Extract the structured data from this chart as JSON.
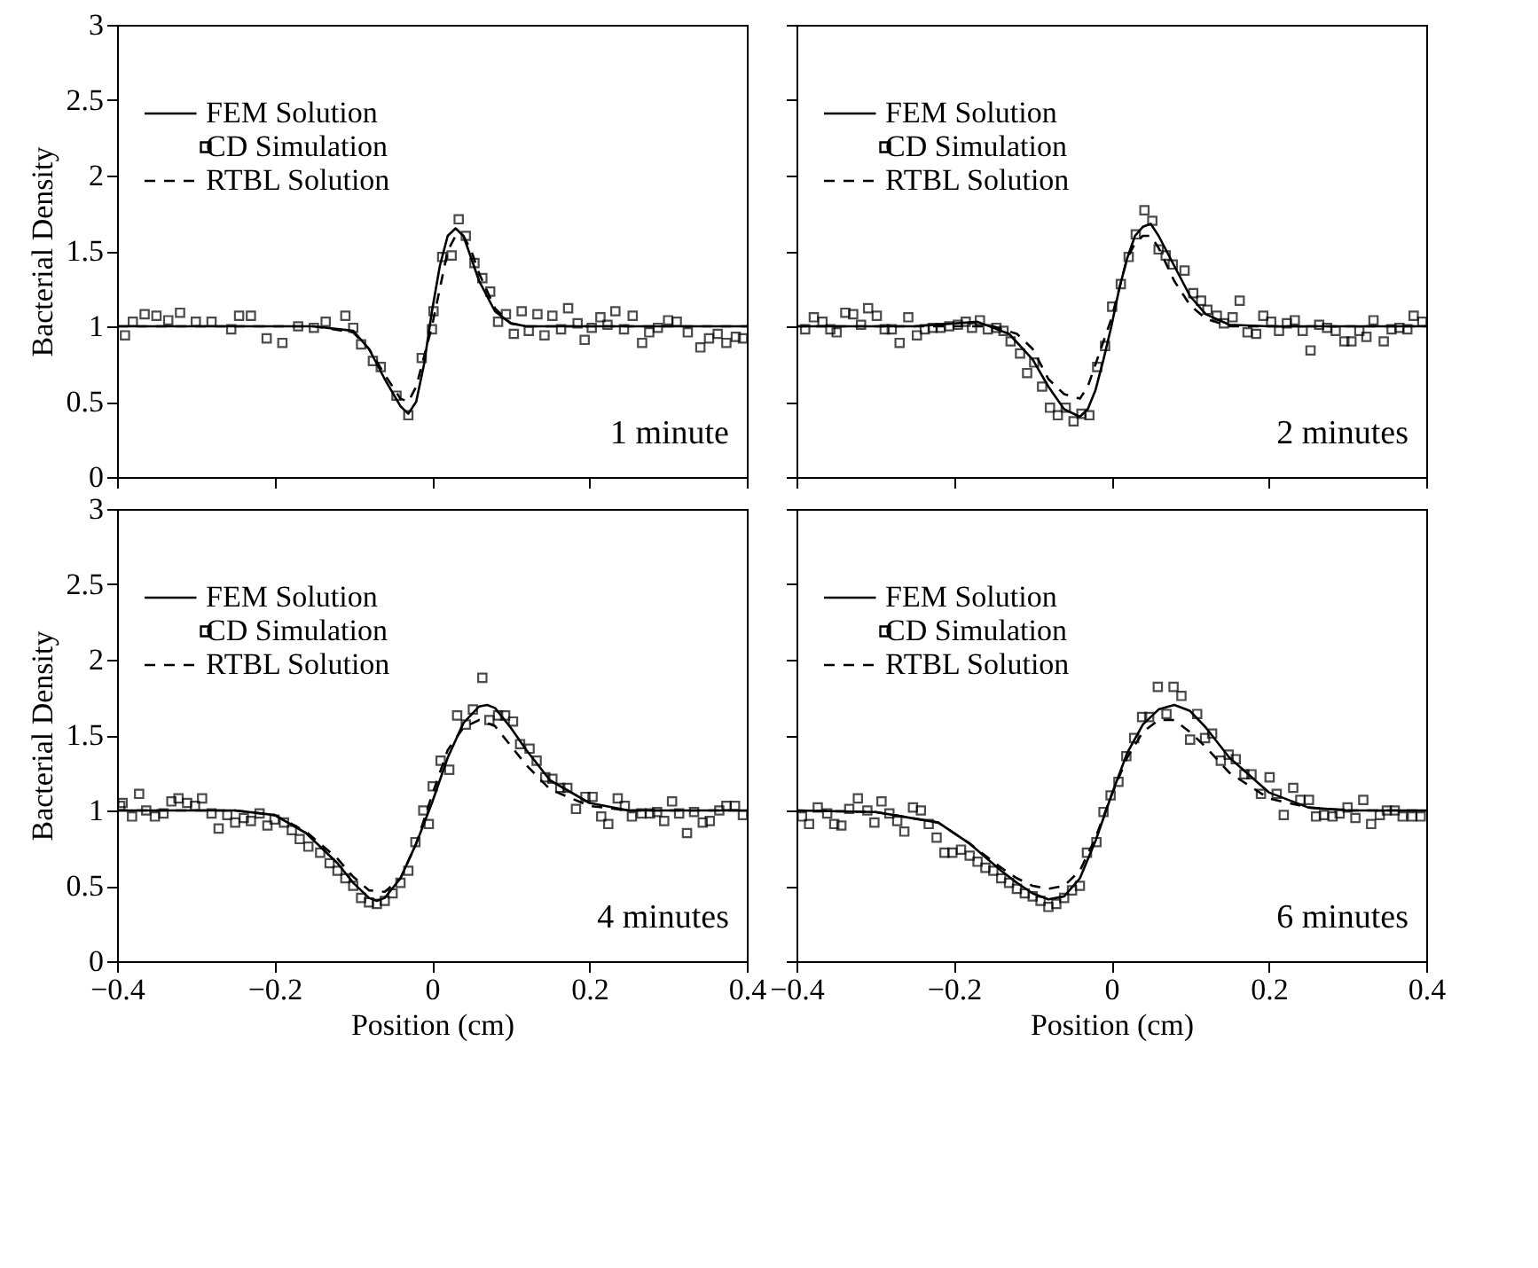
{
  "chart_data": [
    {
      "type": "line",
      "ylabel": "Bacterial Density",
      "xlim": [
        -0.4,
        0.4
      ],
      "xticks": [
        -0.4,
        -0.2,
        0,
        0.2,
        0.4
      ],
      "ylim": [
        0,
        3
      ],
      "yticks": [
        0,
        0.5,
        1,
        1.5,
        2,
        2.5,
        3
      ],
      "tick_labels": "y",
      "legend": "top left",
      "grid": false,
      "annotations": [
        "1 minute"
      ],
      "series": [
        {
          "name": "FEM Solution",
          "type": "line",
          "line_style": "solid",
          "color": "#000000",
          "x": [
            -0.4,
            -0.15,
            -0.1,
            -0.08,
            -0.06,
            -0.04,
            -0.03,
            -0.02,
            -0.01,
            0,
            0.01,
            0.02,
            0.03,
            0.04,
            0.05,
            0.06,
            0.08,
            0.1,
            0.12,
            0.4
          ],
          "values": [
            1,
            1,
            0.97,
            0.85,
            0.65,
            0.47,
            0.42,
            0.5,
            0.75,
            1.1,
            1.4,
            1.6,
            1.65,
            1.6,
            1.45,
            1.3,
            1.1,
            1.02,
            1,
            1
          ]
        },
        {
          "name": "CD Simulation",
          "type": "scatter",
          "marker": "square",
          "color": "#000000",
          "x": [
            -0.39,
            -0.38,
            -0.365,
            -0.35,
            -0.335,
            -0.32,
            -0.3,
            -0.28,
            -0.255,
            -0.245,
            -0.23,
            -0.21,
            -0.19,
            -0.17,
            -0.15,
            -0.135,
            -0.11,
            -0.1,
            -0.09,
            -0.075,
            -0.065,
            -0.045,
            -0.03,
            -0.013,
            0,
            0.002,
            0.013,
            0.025,
            0.034,
            0.043,
            0.054,
            0.064,
            0.074,
            0.084,
            0.094,
            0.104,
            0.114,
            0.123,
            0.134,
            0.143,
            0.153,
            0.164,
            0.173,
            0.185,
            0.194,
            0.203,
            0.214,
            0.223,
            0.233,
            0.244,
            0.255,
            0.267,
            0.276,
            0.287,
            0.3,
            0.311,
            0.325,
            0.341,
            0.352,
            0.363,
            0.374,
            0.386,
            0.395
          ],
          "values": [
            0.94,
            1.03,
            1.08,
            1.07,
            1.04,
            1.09,
            1.03,
            1.03,
            0.98,
            1.07,
            1.07,
            0.92,
            0.89,
            1,
            0.99,
            1.03,
            1.07,
            0.99,
            0.88,
            0.77,
            0.73,
            0.54,
            0.41,
            0.79,
            0.98,
            1.1,
            1.46,
            1.47,
            1.71,
            1.6,
            1.42,
            1.32,
            1.23,
            1.03,
            1.08,
            0.95,
            1.1,
            0.97,
            1.08,
            0.94,
            1.07,
            0.98,
            1.12,
            1.02,
            0.91,
            0.99,
            1.06,
            1.01,
            1.1,
            0.98,
            1.07,
            0.89,
            0.96,
            0.99,
            1.04,
            1.03,
            0.96,
            0.86,
            0.92,
            0.95,
            0.89,
            0.93,
            0.92
          ]
        },
        {
          "name": "RTBL Solution",
          "type": "line",
          "line_style": "dashed",
          "color": "#000000",
          "x": [
            -0.4,
            -0.15,
            -0.1,
            -0.08,
            -0.06,
            -0.04,
            -0.03,
            -0.02,
            0,
            0.02,
            0.03,
            0.04,
            0.05,
            0.06,
            0.08,
            0.1,
            0.12,
            0.4
          ],
          "values": [
            1,
            1,
            0.96,
            0.85,
            0.68,
            0.52,
            0.5,
            0.6,
            1.0,
            1.5,
            1.6,
            1.6,
            1.5,
            1.35,
            1.12,
            1.02,
            1,
            1
          ]
        }
      ]
    },
    {
      "type": "line",
      "xlim": [
        -0.4,
        0.4
      ],
      "xticks": [
        -0.4,
        -0.2,
        0,
        0.2,
        0.4
      ],
      "ylim": [
        0,
        3
      ],
      "yticks": [
        0,
        0.5,
        1,
        1.5,
        2,
        2.5,
        3
      ],
      "tick_labels": false,
      "legend": "top left",
      "grid": false,
      "annotations": [
        "2 minutes"
      ],
      "series": [
        {
          "name": "FEM Solution",
          "type": "line",
          "line_style": "solid",
          "color": "#000000",
          "x": [
            -0.4,
            -0.25,
            -0.17,
            -0.13,
            -0.1,
            -0.08,
            -0.06,
            -0.04,
            -0.03,
            -0.02,
            -0.01,
            0,
            0.01,
            0.02,
            0.03,
            0.04,
            0.05,
            0.06,
            0.08,
            0.1,
            0.12,
            0.15,
            0.2,
            0.4
          ],
          "values": [
            1,
            1,
            1.03,
            0.95,
            0.78,
            0.6,
            0.45,
            0.4,
            0.45,
            0.58,
            0.78,
            1.0,
            1.25,
            1.45,
            1.6,
            1.66,
            1.68,
            1.6,
            1.4,
            1.2,
            1.08,
            1.01,
            1,
            1
          ]
        },
        {
          "name": "CD Simulation",
          "type": "scatter",
          "marker": "square",
          "color": "#000000",
          "x": [
            -0.389,
            -0.378,
            -0.367,
            -0.357,
            -0.349,
            -0.338,
            -0.328,
            -0.318,
            -0.309,
            -0.298,
            -0.288,
            -0.279,
            -0.269,
            -0.258,
            -0.247,
            -0.237,
            -0.227,
            -0.217,
            -0.206,
            -0.195,
            -0.185,
            -0.177,
            -0.167,
            -0.157,
            -0.146,
            -0.137,
            -0.128,
            -0.116,
            -0.107,
            -0.098,
            -0.088,
            -0.078,
            -0.068,
            -0.058,
            -0.048,
            -0.038,
            -0.028,
            -0.018,
            -0.008,
            0.001,
            0.012,
            0.022,
            0.031,
            0.042,
            0.052,
            0.06,
            0.069,
            0.078,
            0.093,
            0.104,
            0.114,
            0.122,
            0.134,
            0.143,
            0.154,
            0.163,
            0.173,
            0.184,
            0.193,
            0.203,
            0.213,
            0.223,
            0.233,
            0.243,
            0.253,
            0.264,
            0.274,
            0.285,
            0.296,
            0.305,
            0.315,
            0.324,
            0.333,
            0.346,
            0.356,
            0.366,
            0.376,
            0.384,
            0.395
          ],
          "values": [
            0.98,
            1.06,
            1.03,
            0.98,
            0.96,
            1.09,
            1.08,
            1.01,
            1.12,
            1.07,
            0.98,
            0.98,
            0.89,
            1.06,
            0.94,
            0.98,
            0.99,
            0.99,
            1.0,
            1.01,
            1.03,
            0.99,
            1.04,
            0.98,
            0.99,
            0.97,
            0.9,
            0.82,
            0.69,
            0.76,
            0.6,
            0.46,
            0.41,
            0.46,
            0.37,
            0.42,
            0.41,
            0.73,
            0.87,
            1.13,
            1.28,
            1.46,
            1.61,
            1.77,
            1.7,
            1.51,
            1.47,
            1.41,
            1.37,
            1.22,
            1.17,
            1.11,
            1.07,
            1.02,
            1.06,
            1.17,
            0.96,
            0.95,
            1.07,
            1.03,
            0.97,
            1.02,
            1.04,
            0.97,
            0.84,
            1.01,
            0.99,
            0.97,
            0.9,
            0.9,
            0.97,
            0.93,
            1.04,
            0.9,
            0.98,
            0.99,
            0.98,
            1.07,
            1.03
          ]
        },
        {
          "name": "RTBL Solution",
          "type": "line",
          "line_style": "dashed",
          "color": "#000000",
          "x": [
            -0.4,
            -0.2,
            -0.15,
            -0.12,
            -0.1,
            -0.08,
            -0.06,
            -0.04,
            -0.03,
            -0.02,
            0,
            0.02,
            0.03,
            0.04,
            0.05,
            0.06,
            0.08,
            0.1,
            0.12,
            0.15,
            0.4
          ],
          "values": [
            1,
            1,
            1,
            0.95,
            0.85,
            0.65,
            0.55,
            0.52,
            0.6,
            0.75,
            1.05,
            1.45,
            1.55,
            1.6,
            1.6,
            1.52,
            1.3,
            1.14,
            1.05,
            1.0,
            1
          ]
        }
      ]
    },
    {
      "type": "line",
      "xlabel": "Position (cm)",
      "ylabel": "Bacterial Density",
      "xlim": [
        -0.4,
        0.4
      ],
      "xticks": [
        -0.4,
        -0.2,
        0,
        0.2,
        0.4
      ],
      "ylim": [
        0,
        3
      ],
      "yticks": [
        0,
        0.5,
        1,
        1.5,
        2,
        2.5,
        3
      ],
      "legend": "top left",
      "grid": false,
      "annotations": [
        "4 minutes"
      ],
      "series": [
        {
          "name": "FEM Solution",
          "type": "line",
          "line_style": "solid",
          "color": "#000000",
          "x": [
            -0.4,
            -0.25,
            -0.2,
            -0.16,
            -0.12,
            -0.1,
            -0.08,
            -0.07,
            -0.06,
            -0.04,
            -0.02,
            0,
            0.02,
            0.04,
            0.06,
            0.07,
            0.08,
            0.1,
            0.12,
            0.15,
            0.2,
            0.25,
            0.4
          ],
          "values": [
            1,
            1,
            0.97,
            0.85,
            0.65,
            0.52,
            0.42,
            0.4,
            0.42,
            0.55,
            0.78,
            1.05,
            1.35,
            1.58,
            1.69,
            1.7,
            1.68,
            1.55,
            1.4,
            1.2,
            1.05,
            1.0,
            1
          ]
        },
        {
          "name": "CD Simulation",
          "type": "scatter",
          "marker": "square",
          "color": "#000000",
          "x": [
            -0.396,
            -0.393,
            -0.381,
            -0.372,
            -0.363,
            -0.352,
            -0.341,
            -0.331,
            -0.322,
            -0.311,
            -0.301,
            -0.292,
            -0.28,
            -0.271,
            -0.26,
            -0.25,
            -0.239,
            -0.23,
            -0.219,
            -0.209,
            -0.2,
            -0.188,
            -0.178,
            -0.168,
            -0.157,
            -0.142,
            -0.13,
            -0.12,
            -0.11,
            -0.1,
            -0.09,
            -0.08,
            -0.07,
            -0.06,
            -0.05,
            -0.04,
            -0.03,
            -0.021,
            -0.011,
            -0.004,
            0.001,
            0.011,
            0.022,
            0.032,
            0.043,
            0.052,
            0.064,
            0.073,
            0.084,
            0.093,
            0.103,
            0.112,
            0.124,
            0.133,
            0.144,
            0.153,
            0.163,
            0.172,
            0.183,
            0.195,
            0.204,
            0.215,
            0.224,
            0.236,
            0.245,
            0.254,
            0.266,
            0.277,
            0.286,
            0.295,
            0.305,
            0.314,
            0.324,
            0.333,
            0.344,
            0.353,
            0.365,
            0.374,
            0.385,
            0.395
          ],
          "values": [
            1.03,
            1.05,
            0.96,
            1.11,
            1.0,
            0.96,
            0.98,
            1.06,
            1.08,
            1.05,
            1.03,
            1.08,
            0.98,
            0.88,
            0.97,
            0.92,
            0.95,
            0.93,
            0.98,
            0.9,
            0.94,
            0.92,
            0.87,
            0.81,
            0.76,
            0.72,
            0.65,
            0.6,
            0.55,
            0.5,
            0.42,
            0.39,
            0.38,
            0.4,
            0.45,
            0.52,
            0.6,
            0.79,
            1.0,
            0.91,
            1.16,
            1.33,
            1.27,
            1.63,
            1.57,
            1.67,
            1.88,
            1.6,
            1.63,
            1.63,
            1.59,
            1.44,
            1.41,
            1.33,
            1.22,
            1.21,
            1.15,
            1.15,
            1.01,
            1.09,
            1.09,
            0.96,
            0.91,
            1.08,
            1.03,
            0.96,
            0.98,
            0.98,
            0.99,
            0.93,
            1.06,
            0.98,
            0.85,
            0.99,
            0.92,
            0.93,
            1.0,
            1.03,
            1.03,
            0.97
          ]
        },
        {
          "name": "RTBL Solution",
          "type": "line",
          "line_style": "dashed",
          "color": "#000000",
          "x": [
            -0.4,
            -0.25,
            -0.2,
            -0.16,
            -0.12,
            -0.1,
            -0.08,
            -0.06,
            -0.04,
            -0.02,
            0,
            0.02,
            0.04,
            0.06,
            0.08,
            0.1,
            0.12,
            0.15,
            0.2,
            0.25,
            0.4
          ],
          "values": [
            1,
            1,
            0.97,
            0.86,
            0.68,
            0.56,
            0.47,
            0.46,
            0.55,
            0.78,
            1.1,
            1.4,
            1.55,
            1.6,
            1.56,
            1.43,
            1.3,
            1.14,
            1.03,
            1.0,
            1
          ]
        }
      ]
    },
    {
      "type": "line",
      "xlabel": "Position (cm)",
      "xlim": [
        -0.4,
        0.4
      ],
      "xticks": [
        -0.4,
        -0.2,
        0,
        0.2,
        0.4
      ],
      "ylim": [
        0,
        3
      ],
      "yticks": [
        0,
        0.5,
        1,
        1.5,
        2,
        2.5,
        3
      ],
      "tick_labels": "x",
      "legend": "top left",
      "grid": false,
      "annotations": [
        "6 minutes"
      ],
      "series": [
        {
          "name": "FEM Solution",
          "type": "line",
          "line_style": "solid",
          "color": "#000000",
          "x": [
            -0.4,
            -0.3,
            -0.22,
            -0.18,
            -0.14,
            -0.12,
            -0.1,
            -0.08,
            -0.06,
            -0.04,
            -0.02,
            0,
            0.02,
            0.04,
            0.06,
            0.08,
            0.1,
            0.12,
            0.15,
            0.2,
            0.25,
            0.3,
            0.4
          ],
          "values": [
            1,
            0.99,
            0.92,
            0.78,
            0.6,
            0.52,
            0.45,
            0.41,
            0.43,
            0.55,
            0.8,
            1.1,
            1.38,
            1.57,
            1.67,
            1.7,
            1.66,
            1.55,
            1.35,
            1.12,
            1.02,
            1,
            1
          ]
        },
        {
          "name": "CD Simulation",
          "type": "scatter",
          "marker": "square",
          "color": "#000000",
          "x": [
            -0.393,
            -0.384,
            -0.373,
            -0.361,
            -0.352,
            -0.343,
            -0.333,
            -0.322,
            -0.31,
            -0.301,
            -0.292,
            -0.282,
            -0.272,
            -0.263,
            -0.252,
            -0.242,
            -0.232,
            -0.222,
            -0.212,
            -0.202,
            -0.191,
            -0.18,
            -0.17,
            -0.16,
            -0.15,
            -0.14,
            -0.13,
            -0.12,
            -0.11,
            -0.1,
            -0.09,
            -0.08,
            -0.07,
            -0.06,
            -0.05,
            -0.04,
            -0.031,
            -0.019,
            -0.01,
            -0.001,
            0.009,
            0.019,
            0.029,
            0.039,
            0.048,
            0.059,
            0.07,
            0.079,
            0.089,
            0.1,
            0.109,
            0.119,
            0.128,
            0.139,
            0.149,
            0.158,
            0.169,
            0.178,
            0.19,
            0.201,
            0.21,
            0.219,
            0.231,
            0.24,
            0.251,
            0.26,
            0.27,
            0.281,
            0.29,
            0.3,
            0.31,
            0.32,
            0.33,
            0.341,
            0.35,
            0.36,
            0.37,
            0.382,
            0.393
          ],
          "values": [
            0.96,
            0.91,
            1.02,
            0.98,
            0.91,
            0.9,
            1.01,
            1.08,
            1.0,
            0.92,
            1.06,
            0.98,
            0.93,
            0.86,
            1.02,
            1.0,
            0.91,
            0.82,
            0.72,
            0.72,
            0.74,
            0.7,
            0.66,
            0.62,
            0.6,
            0.55,
            0.52,
            0.48,
            0.45,
            0.43,
            0.4,
            0.36,
            0.38,
            0.42,
            0.47,
            0.5,
            0.72,
            0.79,
            0.99,
            1.1,
            1.19,
            1.36,
            1.48,
            1.62,
            1.62,
            1.82,
            1.64,
            1.82,
            1.76,
            1.47,
            1.64,
            1.48,
            1.51,
            1.33,
            1.37,
            1.34,
            1.24,
            1.24,
            1.11,
            1.22,
            1.11,
            0.97,
            1.15,
            1.07,
            1.07,
            0.96,
            0.97,
            0.96,
            0.98,
            1.02,
            0.95,
            1.07,
            0.91,
            0.97,
            1.0,
            1.0,
            0.96,
            0.96,
            0.96
          ]
        },
        {
          "name": "RTBL Solution",
          "type": "line",
          "line_style": "dashed",
          "color": "#000000",
          "x": [
            -0.4,
            -0.3,
            -0.22,
            -0.18,
            -0.14,
            -0.12,
            -0.1,
            -0.08,
            -0.06,
            -0.04,
            -0.02,
            0,
            0.02,
            0.04,
            0.06,
            0.08,
            0.1,
            0.12,
            0.15,
            0.2,
            0.25,
            0.3,
            0.4
          ],
          "values": [
            1,
            0.99,
            0.92,
            0.78,
            0.62,
            0.55,
            0.5,
            0.48,
            0.5,
            0.6,
            0.82,
            1.1,
            1.35,
            1.52,
            1.6,
            1.6,
            1.52,
            1.42,
            1.25,
            1.08,
            1.02,
            1,
            1
          ]
        }
      ]
    }
  ]
}
